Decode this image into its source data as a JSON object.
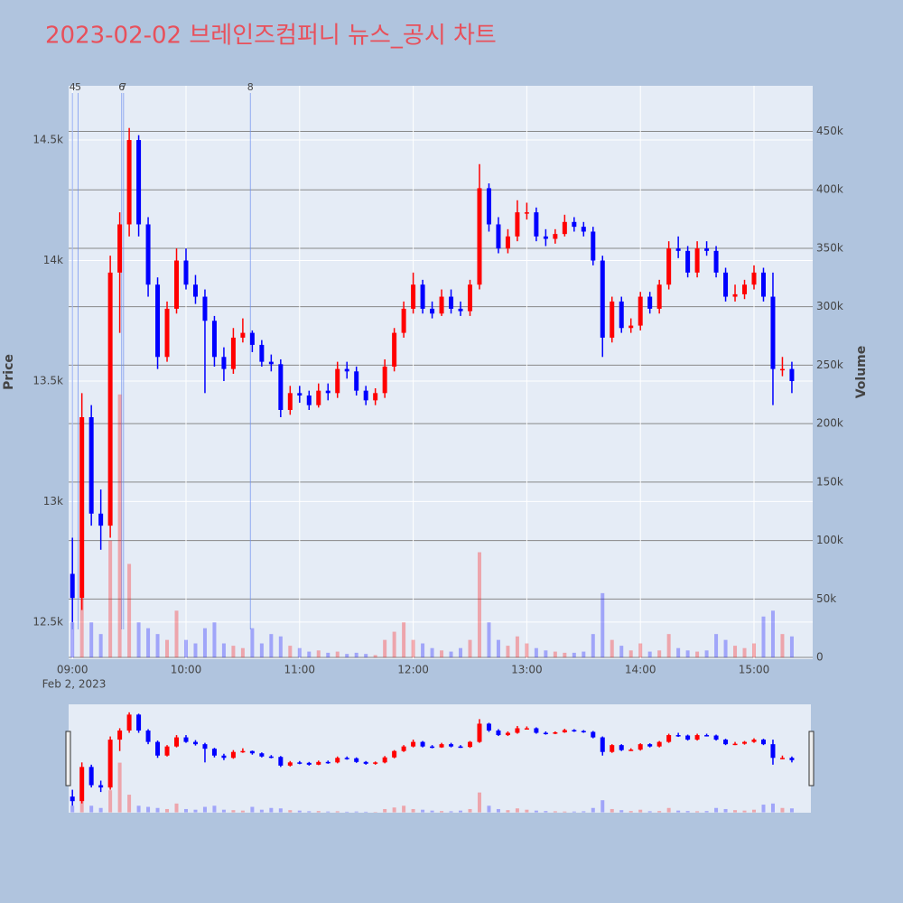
{
  "chart_data": {
    "type": "candlestick",
    "title": "2023-02-02 브레인즈컴퍼니 뉴스_공시 차트",
    "title_color": "#e8505b",
    "x_date_label": "Feb 2, 2023",
    "y_label": "Price",
    "y2_label": "Volume",
    "up_color": "#ff0000",
    "down_color": "#0000ff",
    "grid": true,
    "xlim": [
      "08:58",
      "15:31"
    ],
    "xticks": [
      "09:00",
      "10:00",
      "11:00",
      "12:00",
      "13:00",
      "14:00",
      "15:00"
    ],
    "ylim": [
      12346,
      14725
    ],
    "yticks": [
      {
        "value": 12500,
        "label": "12.5k"
      },
      {
        "value": 13000,
        "label": "13k"
      },
      {
        "value": 13500,
        "label": "13.5k"
      },
      {
        "value": 14000,
        "label": "14k"
      },
      {
        "value": 14500,
        "label": "14.5k"
      }
    ],
    "y2lim": [
      -1500,
      489000
    ],
    "y2ticks": [
      0,
      {
        "value": 50000,
        "label": "50k"
      },
      {
        "value": 100000,
        "label": "100k"
      },
      {
        "value": 150000,
        "label": "150k"
      },
      {
        "value": 200000,
        "label": "200k"
      },
      {
        "value": 250000,
        "label": "250k"
      },
      {
        "value": 300000,
        "label": "300k"
      },
      {
        "value": 350000,
        "label": "350k"
      },
      {
        "value": 400000,
        "label": "400k"
      },
      {
        "value": 450000,
        "label": "450k"
      }
    ],
    "events": [
      {
        "label": "4",
        "x": "09:00"
      },
      {
        "label": "5",
        "x": "09:03"
      },
      {
        "label": "6",
        "x": "09:26"
      },
      {
        "label": "7",
        "x": "09:27"
      },
      {
        "label": "8",
        "x": "10:34"
      }
    ],
    "x": [
      "09:00",
      "09:05",
      "09:10",
      "09:15",
      "09:20",
      "09:25",
      "09:30",
      "09:35",
      "09:40",
      "09:45",
      "09:50",
      "09:55",
      "10:00",
      "10:05",
      "10:10",
      "10:15",
      "10:20",
      "10:25",
      "10:30",
      "10:35",
      "10:40",
      "10:45",
      "10:50",
      "10:55",
      "11:00",
      "11:05",
      "11:10",
      "11:15",
      "11:20",
      "11:25",
      "11:30",
      "11:35",
      "11:40",
      "11:45",
      "11:50",
      "11:55",
      "12:00",
      "12:05",
      "12:10",
      "12:15",
      "12:20",
      "12:25",
      "12:30",
      "12:35",
      "12:40",
      "12:45",
      "12:50",
      "12:55",
      "13:00",
      "13:05",
      "13:10",
      "13:15",
      "13:20",
      "13:25",
      "13:30",
      "13:35",
      "13:40",
      "13:45",
      "13:50",
      "13:55",
      "14:00",
      "14:05",
      "14:10",
      "14:15",
      "14:20",
      "14:25",
      "14:30",
      "14:35",
      "14:40",
      "14:45",
      "14:50",
      "14:55",
      "15:00",
      "15:05",
      "15:10",
      "15:15",
      "15:20"
    ],
    "open": [
      12700,
      12600,
      13350,
      12950,
      12900,
      13950,
      14150,
      14500,
      14150,
      13900,
      13600,
      13800,
      14000,
      13900,
      13850,
      13750,
      13600,
      13550,
      13680,
      13700,
      13650,
      13580,
      13570,
      13380,
      13450,
      13440,
      13400,
      13460,
      13450,
      13550,
      13540,
      13460,
      13420,
      13450,
      13560,
      13700,
      13800,
      13900,
      13800,
      13780,
      13850,
      13800,
      13790,
      13900,
      14300,
      14150,
      14050,
      14100,
      14200,
      14200,
      14100,
      14090,
      14110,
      14160,
      14140,
      14120,
      14000,
      13680,
      13830,
      13720,
      13730,
      13850,
      13800,
      13900,
      14050,
      14040,
      13950,
      14050,
      14040,
      13950,
      13850,
      13860,
      13900,
      13950,
      13850,
      13550,
      13550
    ],
    "high": [
      12850,
      13450,
      13400,
      13050,
      14020,
      14200,
      14550,
      14520,
      14180,
      13930,
      13830,
      14050,
      14050,
      13940,
      13880,
      13770,
      13640,
      13720,
      13760,
      13710,
      13670,
      13610,
      13590,
      13480,
      13480,
      13460,
      13490,
      13490,
      13580,
      13580,
      13560,
      13480,
      13470,
      13590,
      13720,
      13830,
      13950,
      13920,
      13830,
      13880,
      13880,
      13830,
      13920,
      14400,
      14320,
      14180,
      14130,
      14250,
      14240,
      14220,
      14130,
      14130,
      14190,
      14180,
      14160,
      14140,
      14020,
      13850,
      13850,
      13760,
      13870,
      13870,
      13920,
      14080,
      14100,
      14060,
      14080,
      14080,
      14060,
      13970,
      13900,
      13920,
      13980,
      13970,
      13950,
      13600,
      13580
    ],
    "low": [
      12500,
      12550,
      12900,
      12800,
      12850,
      13700,
      14100,
      14100,
      13850,
      13550,
      13580,
      13780,
      13880,
      13820,
      13450,
      13560,
      13500,
      13530,
      13660,
      13620,
      13560,
      13540,
      13350,
      13360,
      13410,
      13380,
      13390,
      13420,
      13430,
      13510,
      13440,
      13400,
      13400,
      13430,
      13540,
      13680,
      13780,
      13780,
      13760,
      13770,
      13780,
      13770,
      13770,
      13880,
      14120,
      14030,
      14030,
      14080,
      14170,
      14080,
      14060,
      14070,
      14100,
      14120,
      14100,
      13980,
      13600,
      13660,
      13700,
      13700,
      13710,
      13780,
      13780,
      13880,
      14010,
      13930,
      13930,
      14020,
      13930,
      13830,
      13830,
      13840,
      13880,
      13830,
      13400,
      13520,
      13450
    ],
    "close": [
      12600,
      13350,
      12950,
      12900,
      13950,
      14150,
      14500,
      14150,
      13900,
      13600,
      13800,
      14000,
      13900,
      13850,
      13750,
      13600,
      13550,
      13680,
      13700,
      13650,
      13580,
      13570,
      13380,
      13450,
      13440,
      13400,
      13460,
      13450,
      13550,
      13540,
      13460,
      13420,
      13450,
      13560,
      13700,
      13800,
      13900,
      13800,
      13780,
      13850,
      13800,
      13790,
      13900,
      14300,
      14150,
      14050,
      14100,
      14200,
      14200,
      14100,
      14090,
      14110,
      14160,
      14140,
      14120,
      14000,
      13680,
      13830,
      13720,
      13730,
      13850,
      13800,
      13900,
      14050,
      14040,
      13950,
      14050,
      14040,
      13950,
      13850,
      13860,
      13900,
      13950,
      13850,
      13550,
      13550,
      13500
    ],
    "volume": [
      30000,
      50000,
      30000,
      20000,
      100000,
      225000,
      80000,
      30000,
      25000,
      20000,
      15000,
      40000,
      15000,
      12000,
      25000,
      30000,
      12000,
      10000,
      8000,
      25000,
      12000,
      20000,
      18000,
      10000,
      8000,
      5000,
      6000,
      4000,
      5000,
      3000,
      4000,
      3000,
      2000,
      15000,
      22000,
      30000,
      15000,
      12000,
      8000,
      6000,
      5000,
      8000,
      15000,
      90000,
      30000,
      15000,
      10000,
      18000,
      12000,
      8000,
      6000,
      5000,
      4000,
      4000,
      5000,
      20000,
      55000,
      15000,
      10000,
      6000,
      12000,
      5000,
      6000,
      20000,
      8000,
      6000,
      5000,
      6000,
      20000,
      15000,
      10000,
      8000,
      12000,
      35000,
      40000,
      20000,
      18000
    ]
  }
}
